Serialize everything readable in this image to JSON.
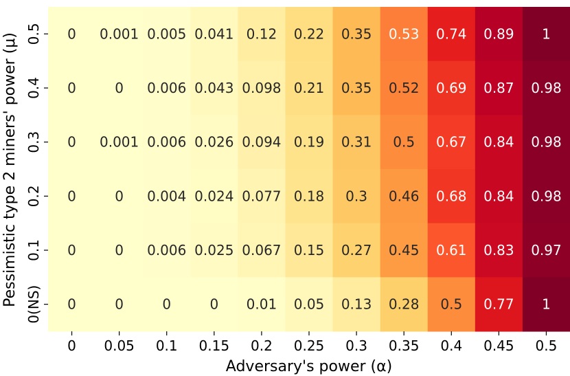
{
  "chart_data": {
    "type": "heatmap",
    "title": "",
    "xlabel": "Adversary's power (α)",
    "ylabel": "Pessimistic type 2 miners' power (μ)",
    "x_categories": [
      "0",
      "0.05",
      "0.1",
      "0.15",
      "0.2",
      "0.25",
      "0.3",
      "0.35",
      "0.4",
      "0.45",
      "0.5"
    ],
    "y_categories": [
      "0.5",
      "0.4",
      "0.3",
      "0.2",
      "0.1",
      "0(NS)"
    ],
    "values": [
      [
        0,
        0.001,
        0.005,
        0.041,
        0.12,
        0.22,
        0.35,
        0.53,
        0.74,
        0.89,
        1
      ],
      [
        0,
        0,
        0.006,
        0.043,
        0.098,
        0.21,
        0.35,
        0.52,
        0.69,
        0.87,
        0.98
      ],
      [
        0,
        0.001,
        0.006,
        0.026,
        0.094,
        0.19,
        0.31,
        0.5,
        0.67,
        0.84,
        0.98
      ],
      [
        0,
        0,
        0.004,
        0.024,
        0.077,
        0.18,
        0.3,
        0.46,
        0.68,
        0.84,
        0.98
      ],
      [
        0,
        0,
        0.006,
        0.025,
        0.067,
        0.15,
        0.27,
        0.45,
        0.61,
        0.83,
        0.97
      ],
      [
        0,
        0,
        0,
        0,
        0.01,
        0.05,
        0.13,
        0.28,
        0.5,
        0.77,
        1
      ]
    ],
    "labels": [
      [
        "0",
        "0.001",
        "0.005",
        "0.041",
        "0.12",
        "0.22",
        "0.35",
        "0.53",
        "0.74",
        "0.89",
        "1"
      ],
      [
        "0",
        "0",
        "0.006",
        "0.043",
        "0.098",
        "0.21",
        "0.35",
        "0.52",
        "0.69",
        "0.87",
        "0.98"
      ],
      [
        "0",
        "0.001",
        "0.006",
        "0.026",
        "0.094",
        "0.19",
        "0.31",
        "0.5",
        "0.67",
        "0.84",
        "0.98"
      ],
      [
        "0",
        "0",
        "0.004",
        "0.024",
        "0.077",
        "0.18",
        "0.3",
        "0.46",
        "0.68",
        "0.84",
        "0.98"
      ],
      [
        "0",
        "0",
        "0.006",
        "0.025",
        "0.067",
        "0.15",
        "0.27",
        "0.45",
        "0.61",
        "0.83",
        "0.97"
      ],
      [
        "0",
        "0",
        "0",
        "0",
        "0.01",
        "0.05",
        "0.13",
        "0.28",
        "0.5",
        "0.77",
        "1"
      ]
    ],
    "colormap": "YlOrRd",
    "value_range": [
      0,
      1
    ],
    "colorbar": false,
    "grid": false
  }
}
